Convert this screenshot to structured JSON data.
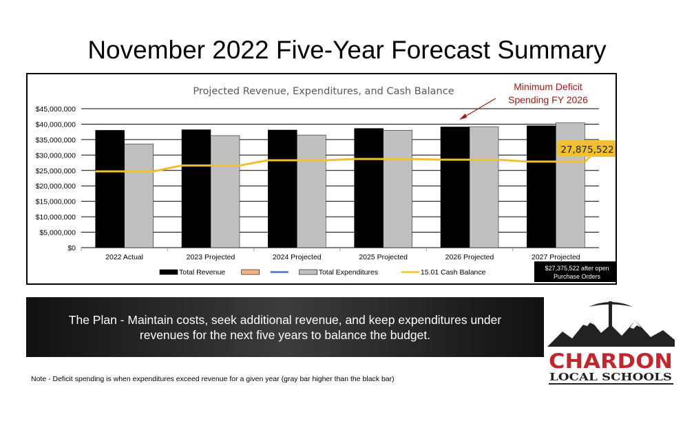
{
  "page": {
    "title": "November 2022 Five-Year Forecast Summary",
    "plan_text": "The Plan - Maintain costs, seek additional revenue, and keep expenditures under revenues for the next five years to balance the budget.",
    "note": "Note - Deficit spending is when expenditures exceed revenue for a given year (gray bar higher than the black bar)",
    "logo": {
      "name": "CHARDON",
      "subtitle": "LOCAL SCHOOLS"
    }
  },
  "chart_data": {
    "type": "bar",
    "title": "Projected Revenue, Expenditures, and Cash Balance",
    "categories": [
      "2022 Actual",
      "2023 Projected",
      "2024 Projected",
      "2025 Projected",
      "2026 Projected",
      "2027 Projected"
    ],
    "y_ticks": [
      "$0",
      "$5,000,000",
      "$10,000,000",
      "$15,000,000",
      "$20,000,000",
      "$25,000,000",
      "$30,000,000",
      "$35,000,000",
      "$40,000,000",
      "$45,000,000"
    ],
    "ylim": [
      0,
      45000000
    ],
    "grid": true,
    "series": [
      {
        "name": "Total Revenue",
        "kind": "bar",
        "color": "#000000",
        "values": [
          38000000,
          38200000,
          38100000,
          38600000,
          39100000,
          39500000
        ]
      },
      {
        "name": "Total Expenditures",
        "kind": "bar",
        "color": "#c0c0c0",
        "values": [
          33600000,
          36300000,
          36500000,
          38000000,
          39200000,
          40400000
        ]
      },
      {
        "name": "15.01 Cash Balance",
        "kind": "line",
        "color": "#f0c030",
        "values": [
          24700000,
          26600000,
          28300000,
          28700000,
          28500000,
          27875522
        ]
      }
    ],
    "legend": {
      "placement": "bottom",
      "entries": [
        {
          "label": "Total Revenue",
          "swatch": "#000000",
          "type": "box"
        },
        {
          "label": "",
          "swatch": "#f4b183",
          "type": "box"
        },
        {
          "label": "",
          "swatch": "#4472c4",
          "type": "line"
        },
        {
          "label": "Total Expenditures",
          "swatch": "#c0c0c0",
          "type": "box"
        },
        {
          "label": "15.01 Cash Balance",
          "swatch": "#f0c030",
          "type": "line"
        }
      ]
    },
    "annotations": {
      "deficit_line1": "Minimum Deficit",
      "deficit_line2": "Spending FY 2026",
      "deficit_color": "#a01818",
      "cash_callout": "27,875,522",
      "footnote_line1": "$27,375,522 after open",
      "footnote_line2": "Purchase Orders"
    }
  }
}
